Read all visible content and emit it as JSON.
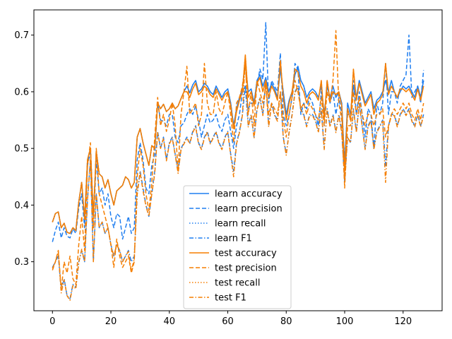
{
  "chart_data": {
    "type": "line",
    "title": "",
    "xlabel": "",
    "ylabel": "",
    "xlim": [
      -6.35,
      133.35
    ],
    "ylim": [
      0.2135,
      0.7445
    ],
    "xticks": [
      0,
      20,
      40,
      60,
      80,
      100,
      120
    ],
    "yticks": [
      0.3,
      0.4,
      0.5,
      0.6,
      0.7
    ],
    "grid": false,
    "legend_position": "lower-center",
    "colors": {
      "learn": "#1f7ef0",
      "test": "#f57e00"
    },
    "x": [
      0,
      1,
      2,
      3,
      4,
      5,
      6,
      7,
      8,
      9,
      10,
      11,
      12,
      13,
      14,
      15,
      16,
      17,
      18,
      19,
      20,
      21,
      22,
      23,
      24,
      25,
      26,
      27,
      28,
      29,
      30,
      31,
      32,
      33,
      34,
      35,
      36,
      37,
      38,
      39,
      40,
      41,
      42,
      43,
      44,
      45,
      46,
      47,
      48,
      49,
      50,
      51,
      52,
      53,
      54,
      55,
      56,
      57,
      58,
      59,
      60,
      61,
      62,
      63,
      64,
      65,
      66,
      67,
      68,
      69,
      70,
      71,
      72,
      73,
      74,
      75,
      76,
      77,
      78,
      79,
      80,
      81,
      82,
      83,
      84,
      85,
      86,
      87,
      88,
      89,
      90,
      91,
      92,
      93,
      94,
      95,
      96,
      97,
      98,
      99,
      100,
      101,
      102,
      103,
      104,
      105,
      106,
      107,
      108,
      109,
      110,
      111,
      112,
      113,
      114,
      115,
      116,
      117,
      118,
      119,
      120,
      121,
      122,
      123,
      124,
      125,
      126,
      127
    ],
    "series": [
      {
        "name": "learn accuracy",
        "group": "learn",
        "dash": "solid",
        "values": [
          0.37,
          0.385,
          0.388,
          0.36,
          0.368,
          0.352,
          0.35,
          0.36,
          0.355,
          0.405,
          0.44,
          0.375,
          0.48,
          0.5,
          0.38,
          0.495,
          0.455,
          0.45,
          0.43,
          0.445,
          0.42,
          0.4,
          0.425,
          0.43,
          0.435,
          0.45,
          0.445,
          0.43,
          0.44,
          0.52,
          0.535,
          0.51,
          0.49,
          0.47,
          0.505,
          0.5,
          0.58,
          0.57,
          0.578,
          0.565,
          0.57,
          0.58,
          0.57,
          0.575,
          0.588,
          0.6,
          0.61,
          0.598,
          0.612,
          0.62,
          0.6,
          0.605,
          0.615,
          0.61,
          0.6,
          0.595,
          0.61,
          0.6,
          0.59,
          0.6,
          0.605,
          0.58,
          0.54,
          0.57,
          0.59,
          0.605,
          0.65,
          0.6,
          0.605,
          0.58,
          0.62,
          0.63,
          0.61,
          0.625,
          0.6,
          0.615,
          0.605,
          0.59,
          0.64,
          0.6,
          0.56,
          0.585,
          0.6,
          0.63,
          0.645,
          0.62,
          0.61,
          0.59,
          0.6,
          0.605,
          0.6,
          0.59,
          0.61,
          0.56,
          0.61,
          0.59,
          0.61,
          0.59,
          0.6,
          0.58,
          0.47,
          0.58,
          0.56,
          0.61,
          0.59,
          0.62,
          0.6,
          0.58,
          0.59,
          0.6,
          0.57,
          0.585,
          0.59,
          0.6,
          0.62,
          0.6,
          0.62,
          0.6,
          0.59,
          0.6,
          0.61,
          0.605,
          0.61,
          0.6,
          0.59,
          0.61,
          0.59,
          0.62
        ]
      },
      {
        "name": "learn precision",
        "group": "learn",
        "dash": "dashed",
        "values": [
          0.335,
          0.355,
          0.37,
          0.342,
          0.36,
          0.345,
          0.342,
          0.358,
          0.35,
          0.395,
          0.42,
          0.36,
          0.47,
          0.495,
          0.36,
          0.48,
          0.42,
          0.43,
          0.4,
          0.42,
          0.38,
          0.36,
          0.385,
          0.38,
          0.34,
          0.36,
          0.38,
          0.35,
          0.36,
          0.48,
          0.51,
          0.48,
          0.43,
          0.42,
          0.47,
          0.49,
          0.58,
          0.55,
          0.548,
          0.54,
          0.56,
          0.56,
          0.52,
          0.51,
          0.54,
          0.545,
          0.56,
          0.57,
          0.56,
          0.575,
          0.55,
          0.52,
          0.54,
          0.56,
          0.545,
          0.55,
          0.56,
          0.54,
          0.53,
          0.55,
          0.56,
          0.53,
          0.5,
          0.54,
          0.56,
          0.6,
          0.61,
          0.57,
          0.58,
          0.58,
          0.61,
          0.64,
          0.622,
          0.722,
          0.58,
          0.62,
          0.61,
          0.6,
          0.668,
          0.56,
          0.54,
          0.56,
          0.59,
          0.65,
          0.64,
          0.56,
          0.58,
          0.57,
          0.59,
          0.58,
          0.56,
          0.54,
          0.6,
          0.54,
          0.62,
          0.58,
          0.6,
          0.56,
          0.59,
          0.56,
          0.48,
          0.56,
          0.56,
          0.62,
          0.56,
          0.6,
          0.56,
          0.52,
          0.57,
          0.56,
          0.5,
          0.58,
          0.56,
          0.58,
          0.65,
          0.56,
          0.6,
          0.6,
          0.58,
          0.61,
          0.62,
          0.63,
          0.7,
          0.59,
          0.6,
          0.61,
          0.58,
          0.638
        ]
      },
      {
        "name": "learn recall",
        "group": "learn",
        "dash": "dotted",
        "values": [
          0.37,
          0.385,
          0.388,
          0.36,
          0.368,
          0.352,
          0.35,
          0.36,
          0.355,
          0.405,
          0.44,
          0.375,
          0.48,
          0.5,
          0.38,
          0.495,
          0.455,
          0.45,
          0.43,
          0.445,
          0.42,
          0.4,
          0.425,
          0.43,
          0.435,
          0.45,
          0.445,
          0.43,
          0.44,
          0.52,
          0.535,
          0.51,
          0.49,
          0.47,
          0.505,
          0.5,
          0.58,
          0.57,
          0.578,
          0.565,
          0.57,
          0.58,
          0.57,
          0.575,
          0.588,
          0.6,
          0.61,
          0.598,
          0.612,
          0.62,
          0.6,
          0.605,
          0.615,
          0.61,
          0.6,
          0.595,
          0.61,
          0.6,
          0.59,
          0.6,
          0.605,
          0.58,
          0.54,
          0.57,
          0.59,
          0.605,
          0.65,
          0.6,
          0.605,
          0.58,
          0.62,
          0.63,
          0.61,
          0.625,
          0.6,
          0.615,
          0.605,
          0.59,
          0.64,
          0.6,
          0.56,
          0.585,
          0.6,
          0.63,
          0.645,
          0.62,
          0.61,
          0.59,
          0.6,
          0.605,
          0.6,
          0.59,
          0.61,
          0.56,
          0.61,
          0.59,
          0.61,
          0.59,
          0.6,
          0.58,
          0.47,
          0.58,
          0.56,
          0.61,
          0.59,
          0.62,
          0.6,
          0.58,
          0.59,
          0.6,
          0.57,
          0.585,
          0.59,
          0.6,
          0.62,
          0.6,
          0.62,
          0.6,
          0.59,
          0.6,
          0.61,
          0.605,
          0.61,
          0.6,
          0.59,
          0.61,
          0.59,
          0.62
        ]
      },
      {
        "name": "learn F1",
        "group": "learn",
        "dash": "dashdot",
        "values": [
          0.29,
          0.3,
          0.31,
          0.25,
          0.27,
          0.24,
          0.235,
          0.26,
          0.255,
          0.3,
          0.32,
          0.3,
          0.41,
          0.48,
          0.3,
          0.42,
          0.36,
          0.37,
          0.35,
          0.36,
          0.33,
          0.31,
          0.33,
          0.32,
          0.3,
          0.31,
          0.32,
          0.3,
          0.31,
          0.42,
          0.46,
          0.43,
          0.4,
          0.38,
          0.42,
          0.46,
          0.53,
          0.5,
          0.52,
          0.48,
          0.51,
          0.52,
          0.49,
          0.46,
          0.5,
          0.51,
          0.52,
          0.51,
          0.53,
          0.54,
          0.51,
          0.5,
          0.52,
          0.53,
          0.51,
          0.52,
          0.53,
          0.51,
          0.5,
          0.52,
          0.53,
          0.49,
          0.46,
          0.51,
          0.53,
          0.56,
          0.61,
          0.54,
          0.56,
          0.52,
          0.57,
          0.59,
          0.56,
          0.62,
          0.54,
          0.58,
          0.56,
          0.55,
          0.6,
          0.52,
          0.49,
          0.53,
          0.56,
          0.6,
          0.61,
          0.57,
          0.56,
          0.54,
          0.56,
          0.56,
          0.55,
          0.53,
          0.57,
          0.5,
          0.57,
          0.54,
          0.56,
          0.53,
          0.56,
          0.53,
          0.44,
          0.52,
          0.51,
          0.57,
          0.53,
          0.58,
          0.54,
          0.5,
          0.54,
          0.55,
          0.5,
          0.53,
          0.54,
          0.55,
          0.47,
          0.54,
          0.56,
          0.56,
          0.54,
          0.56,
          0.57,
          0.56,
          0.57,
          0.55,
          0.54,
          0.56,
          0.54,
          0.56
        ]
      },
      {
        "name": "test accuracy",
        "group": "test",
        "dash": "solid",
        "values": [
          0.37,
          0.385,
          0.388,
          0.36,
          0.368,
          0.352,
          0.35,
          0.36,
          0.355,
          0.405,
          0.44,
          0.375,
          0.48,
          0.5,
          0.38,
          0.495,
          0.455,
          0.45,
          0.43,
          0.445,
          0.42,
          0.4,
          0.425,
          0.43,
          0.435,
          0.45,
          0.445,
          0.43,
          0.44,
          0.52,
          0.535,
          0.51,
          0.49,
          0.47,
          0.505,
          0.5,
          0.58,
          0.57,
          0.578,
          0.565,
          0.57,
          0.58,
          0.57,
          0.575,
          0.588,
          0.6,
          0.6,
          0.59,
          0.605,
          0.615,
          0.595,
          0.6,
          0.61,
          0.605,
          0.595,
          0.59,
          0.605,
          0.595,
          0.585,
          0.595,
          0.6,
          0.575,
          0.535,
          0.565,
          0.585,
          0.6,
          0.665,
          0.59,
          0.6,
          0.575,
          0.615,
          0.625,
          0.6,
          0.62,
          0.59,
          0.61,
          0.6,
          0.585,
          0.655,
          0.59,
          0.55,
          0.58,
          0.6,
          0.64,
          0.635,
          0.61,
          0.6,
          0.58,
          0.595,
          0.6,
          0.595,
          0.585,
          0.62,
          0.55,
          0.62,
          0.585,
          0.6,
          0.595,
          0.6,
          0.575,
          0.46,
          0.57,
          0.55,
          0.64,
          0.585,
          0.615,
          0.595,
          0.575,
          0.585,
          0.595,
          0.56,
          0.58,
          0.585,
          0.595,
          0.65,
          0.595,
          0.61,
          0.6,
          0.59,
          0.605,
          0.605,
          0.6,
          0.605,
          0.595,
          0.585,
          0.605,
          0.585,
          0.61
        ]
      },
      {
        "name": "test precision",
        "group": "test",
        "dash": "dashed",
        "values": [
          0.285,
          0.3,
          0.32,
          0.25,
          0.3,
          0.28,
          0.31,
          0.27,
          0.26,
          0.33,
          0.38,
          0.32,
          0.47,
          0.51,
          0.36,
          0.5,
          0.42,
          0.4,
          0.38,
          0.36,
          0.33,
          0.29,
          0.34,
          0.31,
          0.29,
          0.3,
          0.31,
          0.28,
          0.3,
          0.45,
          0.5,
          0.47,
          0.42,
          0.39,
          0.44,
          0.52,
          0.59,
          0.54,
          0.56,
          0.53,
          0.55,
          0.58,
          0.54,
          0.46,
          0.56,
          0.6,
          0.645,
          0.56,
          0.57,
          0.58,
          0.54,
          0.56,
          0.65,
          0.58,
          0.56,
          0.56,
          0.6,
          0.57,
          0.56,
          0.58,
          0.6,
          0.56,
          0.51,
          0.58,
          0.59,
          0.61,
          0.65,
          0.56,
          0.6,
          0.54,
          0.62,
          0.6,
          0.58,
          0.61,
          0.56,
          0.58,
          0.57,
          0.56,
          0.6,
          0.55,
          0.52,
          0.56,
          0.59,
          0.62,
          0.6,
          0.57,
          0.58,
          0.56,
          0.58,
          0.57,
          0.56,
          0.55,
          0.59,
          0.54,
          0.6,
          0.58,
          0.62,
          0.708,
          0.58,
          0.55,
          0.43,
          0.54,
          0.54,
          0.6,
          0.56,
          0.59,
          0.56,
          0.54,
          0.56,
          0.56,
          0.54,
          0.56,
          0.56,
          0.57,
          0.52,
          0.54,
          0.56,
          0.57,
          0.56,
          0.57,
          0.58,
          0.57,
          0.58,
          0.56,
          0.55,
          0.57,
          0.55,
          0.58
        ]
      },
      {
        "name": "test recall",
        "group": "test",
        "dash": "dotted",
        "values": [
          0.37,
          0.385,
          0.388,
          0.36,
          0.368,
          0.352,
          0.35,
          0.36,
          0.355,
          0.405,
          0.44,
          0.375,
          0.48,
          0.5,
          0.38,
          0.495,
          0.455,
          0.45,
          0.43,
          0.445,
          0.42,
          0.4,
          0.425,
          0.43,
          0.435,
          0.45,
          0.445,
          0.43,
          0.44,
          0.52,
          0.535,
          0.51,
          0.49,
          0.47,
          0.505,
          0.5,
          0.58,
          0.57,
          0.578,
          0.565,
          0.57,
          0.58,
          0.57,
          0.575,
          0.588,
          0.6,
          0.6,
          0.59,
          0.605,
          0.615,
          0.595,
          0.6,
          0.61,
          0.605,
          0.595,
          0.59,
          0.605,
          0.595,
          0.585,
          0.595,
          0.6,
          0.575,
          0.535,
          0.565,
          0.585,
          0.6,
          0.665,
          0.59,
          0.6,
          0.575,
          0.615,
          0.625,
          0.6,
          0.62,
          0.59,
          0.61,
          0.6,
          0.585,
          0.655,
          0.59,
          0.55,
          0.58,
          0.6,
          0.64,
          0.635,
          0.61,
          0.6,
          0.58,
          0.595,
          0.6,
          0.595,
          0.585,
          0.62,
          0.55,
          0.62,
          0.585,
          0.6,
          0.595,
          0.6,
          0.575,
          0.46,
          0.57,
          0.55,
          0.64,
          0.585,
          0.615,
          0.595,
          0.575,
          0.585,
          0.595,
          0.56,
          0.58,
          0.585,
          0.595,
          0.65,
          0.595,
          0.61,
          0.6,
          0.59,
          0.605,
          0.605,
          0.6,
          0.605,
          0.595,
          0.585,
          0.605,
          0.585,
          0.61
        ]
      },
      {
        "name": "test F1",
        "group": "test",
        "dash": "dashdot",
        "values": [
          0.288,
          0.3,
          0.318,
          0.245,
          0.268,
          0.24,
          0.232,
          0.258,
          0.252,
          0.298,
          0.322,
          0.3,
          0.41,
          0.48,
          0.3,
          0.42,
          0.36,
          0.37,
          0.35,
          0.36,
          0.33,
          0.31,
          0.33,
          0.32,
          0.3,
          0.31,
          0.318,
          0.284,
          0.305,
          0.418,
          0.458,
          0.425,
          0.398,
          0.38,
          0.42,
          0.455,
          0.528,
          0.5,
          0.518,
          0.478,
          0.508,
          0.518,
          0.488,
          0.456,
          0.498,
          0.508,
          0.518,
          0.508,
          0.528,
          0.538,
          0.508,
          0.498,
          0.518,
          0.528,
          0.508,
          0.518,
          0.528,
          0.508,
          0.498,
          0.518,
          0.528,
          0.488,
          0.45,
          0.508,
          0.528,
          0.558,
          0.66,
          0.538,
          0.558,
          0.518,
          0.568,
          0.588,
          0.558,
          0.615,
          0.538,
          0.578,
          0.558,
          0.548,
          0.598,
          0.518,
          0.488,
          0.528,
          0.558,
          0.598,
          0.608,
          0.568,
          0.558,
          0.538,
          0.558,
          0.558,
          0.548,
          0.528,
          0.568,
          0.498,
          0.568,
          0.538,
          0.558,
          0.528,
          0.558,
          0.528,
          0.445,
          0.52,
          0.51,
          0.568,
          0.528,
          0.578,
          0.538,
          0.498,
          0.538,
          0.548,
          0.498,
          0.528,
          0.538,
          0.548,
          0.44,
          0.538,
          0.558,
          0.558,
          0.538,
          0.558,
          0.568,
          0.558,
          0.568,
          0.548,
          0.538,
          0.558,
          0.538,
          0.558
        ]
      }
    ]
  }
}
